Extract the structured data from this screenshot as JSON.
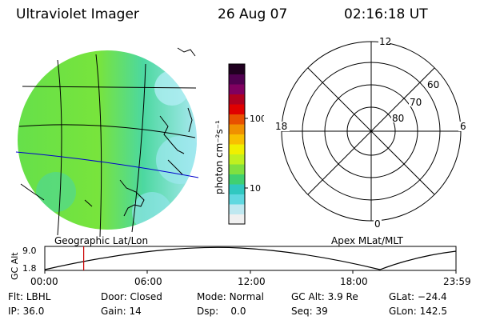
{
  "header": {
    "instrument": "Ultraviolet Imager",
    "date": "26 Aug 07",
    "time": "02:16:18 UT"
  },
  "globe_panel": {
    "caption": "Geographic Lat/Lon"
  },
  "colorbar": {
    "unit_label": "photon cm⁻²s⁻¹",
    "ticks": [
      "100",
      "10"
    ],
    "colors": [
      "#f0f0f0",
      "#bfe8f0",
      "#60d8e0",
      "#30c8c0",
      "#40d070",
      "#80e040",
      "#c0f020",
      "#f0f000",
      "#f8c000",
      "#f09000",
      "#e85000",
      "#e00000",
      "#b00020",
      "#800060",
      "#500050",
      "#200020"
    ]
  },
  "polar_panel": {
    "caption": "Apex MLat/MLT",
    "mlt_labels": {
      "top": "12",
      "bottom": "0",
      "left": "18",
      "right": "6"
    },
    "lat_labels": [
      "60",
      "70",
      "80"
    ]
  },
  "altitude_plot": {
    "ylabel": "GC Alt",
    "yticks": [
      "9.0",
      "1.8"
    ],
    "xticks": [
      "00:00",
      "06:00",
      "12:00",
      "18:00",
      "23:59"
    ],
    "current_time_hours": 2.27,
    "marker_color": "#cc0000"
  },
  "status": {
    "flt_label": "Flt:",
    "flt_value": "LBHL",
    "ip_label": "IP:",
    "ip_value": "36.0",
    "door_label": "Door:",
    "door_value": "Closed",
    "gain_label": "Gain:",
    "gain_value": "14",
    "mode_label": "Mode:",
    "mode_value": "Normal",
    "dsp_label": "Dsp:",
    "dsp_value": "0.0",
    "gcalt_label": "GC Alt:",
    "gcalt_value": "3.9 Re",
    "seq_label": "Seq:",
    "seq_value": "39",
    "glat_label": "GLat:",
    "glat_value": "−24.4",
    "glon_label": "GLon:",
    "glon_value": "142.5"
  }
}
